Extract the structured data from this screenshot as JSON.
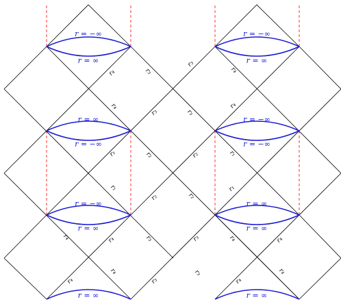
{
  "colors": {
    "edge": "#000000",
    "horizon": "#1a1ad6",
    "dashed": "#ff0000"
  },
  "arc_labels": {
    "minus_inf": "r = −∞",
    "plus_inf": "r = ∞"
  },
  "region_labels": {
    "r1": "r₁",
    "r2": "r₂",
    "r3": "r₃",
    "r4": "r₄"
  }
}
